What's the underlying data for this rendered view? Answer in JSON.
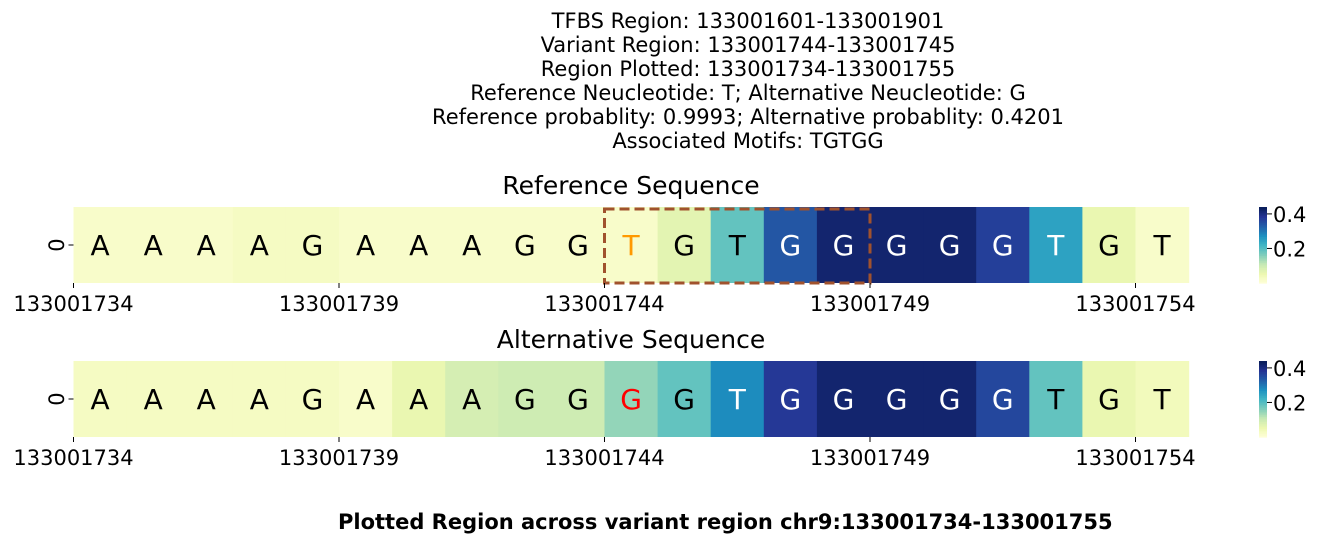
{
  "header": {
    "lines": [
      "TFBS Region: 133001601-133001901",
      "Variant Region: 133001744-133001745",
      "Region Plotted: 133001734-133001755",
      "Reference Neucleotide: T; Alternative Neucleotide: G",
      "Reference probablity: 0.9993; Alternative probablity: 0.4201",
      "Associated Motifs: TGTGG"
    ]
  },
  "footer": "Plotted Region across variant region chr9:133001734-133001755",
  "chart_data": [
    {
      "type": "heatmap",
      "title": "Reference Sequence",
      "ytick": "0",
      "xticks": [
        "133001734",
        "133001739",
        "133001744",
        "133001749",
        "133001754"
      ],
      "xtick_cells": [
        0,
        5,
        10,
        15,
        20
      ],
      "sequence": [
        "A",
        "A",
        "A",
        "A",
        "G",
        "A",
        "A",
        "A",
        "G",
        "G",
        "T",
        "G",
        "T",
        "G",
        "G",
        "G",
        "G",
        "G",
        "T",
        "G",
        "T"
      ],
      "values": [
        0.02,
        0.02,
        0.02,
        0.03,
        0.03,
        0.02,
        0.02,
        0.02,
        0.02,
        0.02,
        0.02,
        0.07,
        0.19,
        0.34,
        0.42,
        0.42,
        0.42,
        0.37,
        0.25,
        0.06,
        0.02
      ],
      "colorbar": {
        "ticks": [
          "0.2",
          "0.4"
        ],
        "tick_values": [
          0.2,
          0.4
        ],
        "range": [
          0.0,
          0.44
        ]
      },
      "highlight_box": {
        "start_cell": 10,
        "end_cell": 15,
        "color": "#a0522d"
      },
      "highlight_letter": {
        "cell": 10,
        "color": "#ff9900"
      }
    },
    {
      "type": "heatmap",
      "title": "Alternative Sequence",
      "ytick": "0",
      "xticks": [
        "133001734",
        "133001739",
        "133001744",
        "133001749",
        "133001754"
      ],
      "xtick_cells": [
        0,
        5,
        10,
        15,
        20
      ],
      "sequence": [
        "A",
        "A",
        "A",
        "A",
        "G",
        "A",
        "A",
        "A",
        "G",
        "G",
        "G",
        "G",
        "T",
        "G",
        "G",
        "G",
        "G",
        "G",
        "T",
        "G",
        "T"
      ],
      "values": [
        0.03,
        0.03,
        0.03,
        0.03,
        0.03,
        0.02,
        0.06,
        0.09,
        0.1,
        0.1,
        0.15,
        0.19,
        0.28,
        0.38,
        0.42,
        0.42,
        0.42,
        0.36,
        0.19,
        0.06,
        0.04
      ],
      "colorbar": {
        "ticks": [
          "0.2",
          "0.4"
        ],
        "tick_values": [
          0.2,
          0.4
        ],
        "range": [
          0.0,
          0.44
        ]
      },
      "highlight_letter": {
        "cell": 10,
        "color": "#ff0000"
      }
    }
  ]
}
